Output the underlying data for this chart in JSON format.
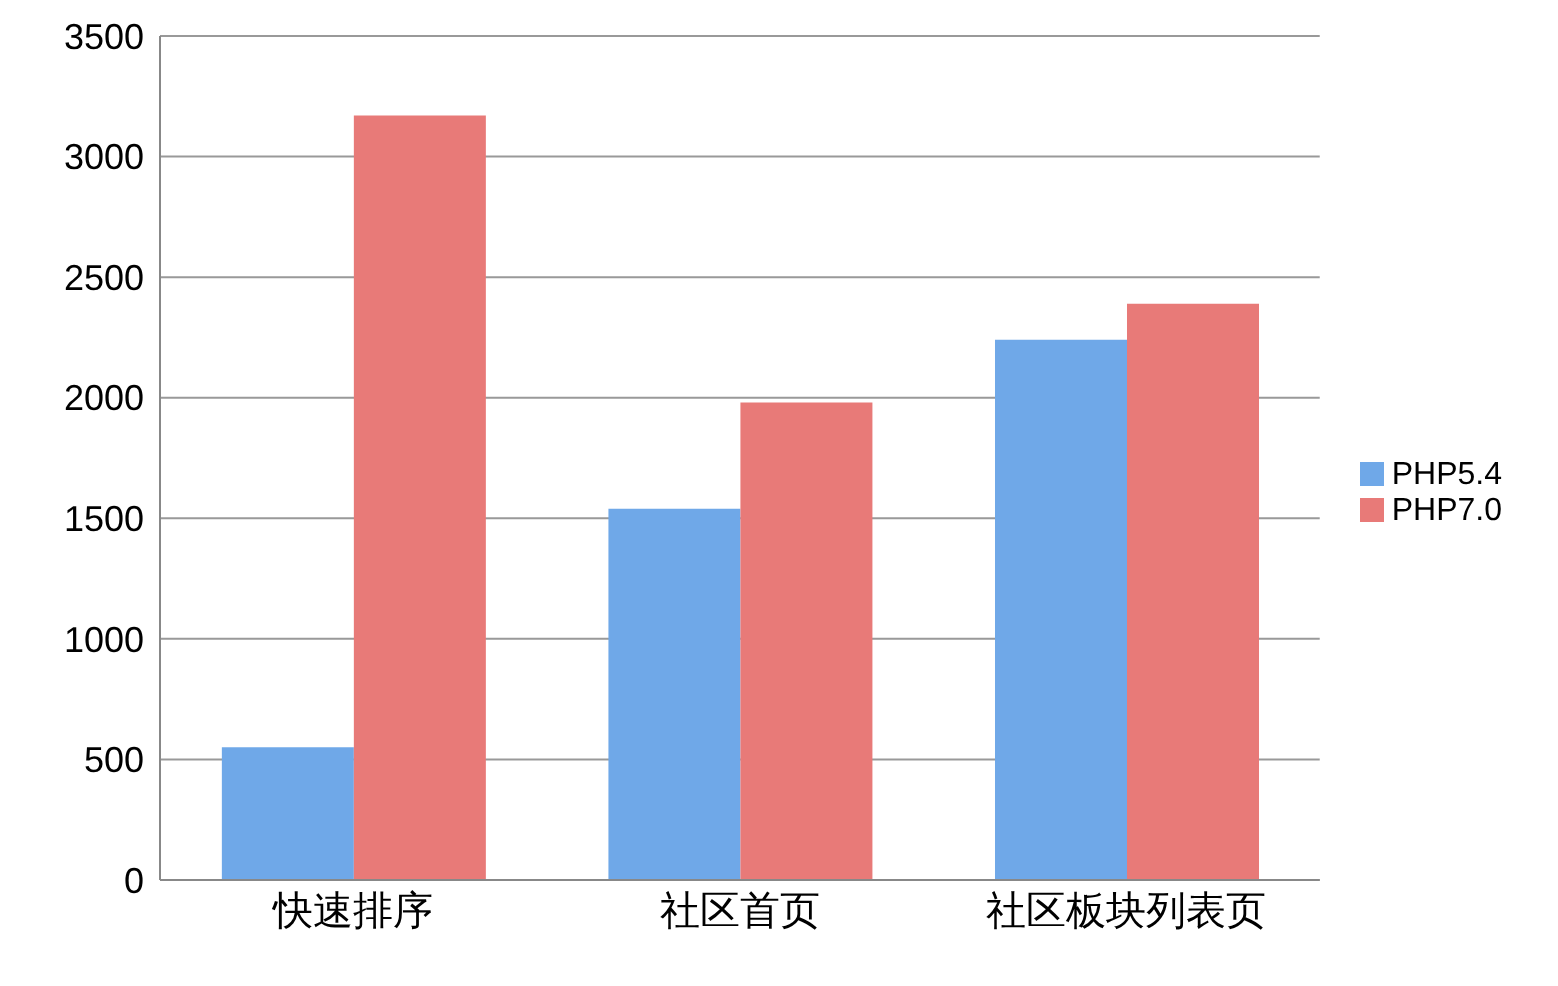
{
  "chart_data": {
    "type": "bar",
    "categories": [
      "快速排序",
      "社区首页",
      "社区板块列表页"
    ],
    "series": [
      {
        "name": "PHP5.4",
        "color": "#6fa8e8",
        "values": [
          550,
          1540,
          2240
        ]
      },
      {
        "name": "PHP7.0",
        "color": "#e87a78",
        "values": [
          3170,
          1980,
          2390
        ]
      }
    ],
    "ylim": [
      0,
      3500
    ],
    "yticks": [
      0,
      500,
      1000,
      1500,
      2000,
      2500,
      3000,
      3500
    ],
    "grid": "y",
    "legend": "right"
  }
}
